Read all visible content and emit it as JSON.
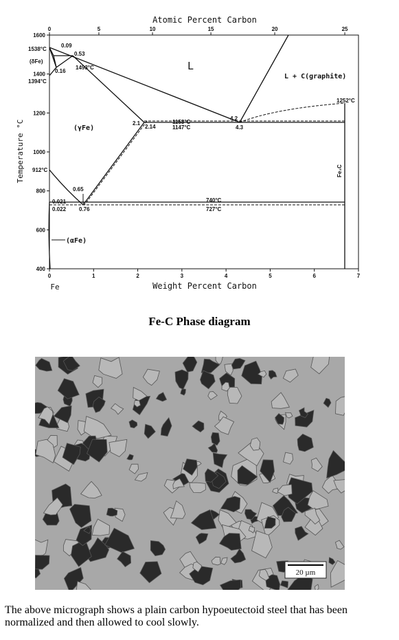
{
  "figure": {
    "top_axis_label": "Atomic Percent Carbon",
    "top_ticks": [
      0,
      5,
      10,
      15,
      20,
      25
    ],
    "x_axis_label": "Weight Percent Carbon",
    "x_ticks": [
      0,
      1,
      2,
      3,
      4,
      5,
      6,
      7
    ],
    "x_sub_label": "Fe",
    "y_axis_label": "Temperature °C",
    "y_ticks": [
      400,
      600,
      800,
      1000,
      1200,
      1400,
      1600
    ],
    "annotations": [
      "1538°C",
      "(δFe)",
      "1394°C",
      "0.09",
      "0.53",
      "0.16",
      "1493°C",
      "L",
      "L + C(graphite)",
      "1252°C",
      "(γFe)",
      "2.1",
      "2.14",
      "1153°C",
      "1147°C",
      "4.2",
      "4.3",
      "912°C",
      "0.65",
      "0.021",
      "0.022",
      "0.76",
      "740°C",
      "727°C",
      "(αFe)",
      "Fe₃C"
    ],
    "caption": "Fe-C Phase diagram"
  },
  "micrograph": {
    "scale_bar": "20 µm"
  },
  "paragraph": "The above micrograph shows a plain carbon hypoeutectoid steel that has been normalized and then allowed to cool slowly."
}
